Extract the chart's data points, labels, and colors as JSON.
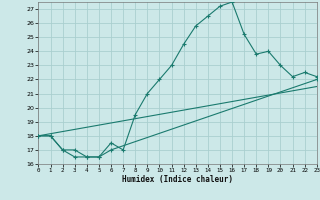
{
  "xlabel": "Humidex (Indice chaleur)",
  "background_color": "#cce8e8",
  "grid_color": "#aacfcf",
  "line_color": "#1a7a6e",
  "xlim": [
    0,
    23
  ],
  "ylim": [
    16,
    27.5
  ],
  "xticks": [
    0,
    1,
    2,
    3,
    4,
    5,
    6,
    7,
    8,
    9,
    10,
    11,
    12,
    13,
    14,
    15,
    16,
    17,
    18,
    19,
    20,
    21,
    22,
    23
  ],
  "yticks": [
    16,
    17,
    18,
    19,
    20,
    21,
    22,
    23,
    24,
    25,
    26,
    27
  ],
  "line1_x": [
    0,
    1,
    2,
    3,
    4,
    5,
    6,
    7,
    8,
    9,
    10,
    11,
    12,
    13,
    14,
    15,
    16,
    17,
    18,
    19,
    20,
    21,
    22,
    23
  ],
  "line1_y": [
    18,
    18,
    17,
    17,
    16.5,
    16.5,
    17.5,
    17,
    19.5,
    21,
    22,
    23,
    24.5,
    25.8,
    26.5,
    27.2,
    27.5,
    25.2,
    23.8,
    24,
    23,
    22.2,
    22.5,
    22.2
  ],
  "line2_x": [
    0,
    1,
    2,
    3,
    4,
    5,
    6,
    23
  ],
  "line2_y": [
    18,
    18,
    17,
    16.5,
    16.5,
    16.5,
    17,
    22
  ],
  "line3_x": [
    0,
    23
  ],
  "line3_y": [
    18,
    21.5
  ]
}
